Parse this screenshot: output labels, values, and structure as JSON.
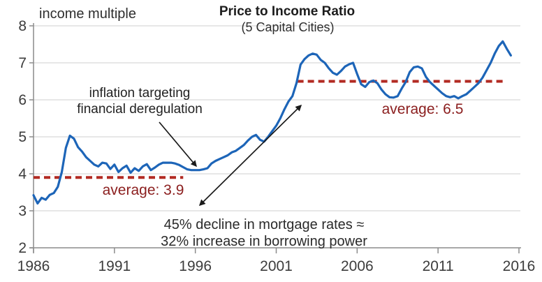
{
  "colors": {
    "series_blue": "#1d65b8",
    "average_red": "#b22a22",
    "average_text_red": "#8b1e1e",
    "grid_gray": "#cfcfcf",
    "axis_gray": "#8c8c8c",
    "tick_text": "#3c3c3c",
    "arrow_black": "#1a1a1a"
  },
  "chart_data": {
    "type": "line",
    "title": "Price to Income Ratio",
    "subtitle": "(5 Capital Cities)",
    "y_unit_label": "income multiple",
    "xlabel": "",
    "ylabel": "income multiple",
    "xlim": [
      1986,
      2016
    ],
    "ylim": [
      2,
      8
    ],
    "x_ticks": [
      1986,
      1991,
      1996,
      2001,
      2006,
      2011,
      2016
    ],
    "y_ticks": [
      2,
      3,
      4,
      5,
      6,
      7,
      8
    ],
    "grid": true,
    "legend": false,
    "series": [
      {
        "name": "price-to-income-ratio",
        "color_key": "series_blue",
        "points": [
          [
            1986,
            3.42
          ],
          [
            1986.25,
            3.2
          ],
          [
            1986.5,
            3.35
          ],
          [
            1986.75,
            3.3
          ],
          [
            1987,
            3.43
          ],
          [
            1987.25,
            3.48
          ],
          [
            1987.5,
            3.65
          ],
          [
            1987.75,
            4.05
          ],
          [
            1988,
            4.7
          ],
          [
            1988.25,
            5.03
          ],
          [
            1988.5,
            4.95
          ],
          [
            1988.75,
            4.72
          ],
          [
            1989,
            4.6
          ],
          [
            1989.25,
            4.45
          ],
          [
            1989.5,
            4.35
          ],
          [
            1989.75,
            4.25
          ],
          [
            1990,
            4.2
          ],
          [
            1990.25,
            4.3
          ],
          [
            1990.5,
            4.28
          ],
          [
            1990.75,
            4.13
          ],
          [
            1991,
            4.25
          ],
          [
            1991.25,
            4.05
          ],
          [
            1991.5,
            4.15
          ],
          [
            1991.75,
            4.22
          ],
          [
            1992,
            4.03
          ],
          [
            1992.25,
            4.15
          ],
          [
            1992.5,
            4.08
          ],
          [
            1992.75,
            4.2
          ],
          [
            1993,
            4.26
          ],
          [
            1993.25,
            4.1
          ],
          [
            1993.5,
            4.17
          ],
          [
            1993.75,
            4.25
          ],
          [
            1994,
            4.3
          ],
          [
            1994.25,
            4.3
          ],
          [
            1994.5,
            4.3
          ],
          [
            1994.75,
            4.28
          ],
          [
            1995,
            4.24
          ],
          [
            1995.25,
            4.18
          ],
          [
            1995.5,
            4.12
          ],
          [
            1995.75,
            4.1
          ],
          [
            1996,
            4.1
          ],
          [
            1996.25,
            4.1
          ],
          [
            1996.5,
            4.12
          ],
          [
            1996.75,
            4.15
          ],
          [
            1997,
            4.28
          ],
          [
            1997.25,
            4.35
          ],
          [
            1997.5,
            4.4
          ],
          [
            1997.75,
            4.45
          ],
          [
            1998,
            4.5
          ],
          [
            1998.25,
            4.58
          ],
          [
            1998.5,
            4.62
          ],
          [
            1998.75,
            4.7
          ],
          [
            1999,
            4.78
          ],
          [
            1999.25,
            4.9
          ],
          [
            1999.5,
            5.0
          ],
          [
            1999.75,
            5.05
          ],
          [
            2000,
            4.92
          ],
          [
            2000.25,
            4.87
          ],
          [
            2000.5,
            5.0
          ],
          [
            2000.75,
            5.15
          ],
          [
            2001,
            5.3
          ],
          [
            2001.25,
            5.5
          ],
          [
            2001.5,
            5.74
          ],
          [
            2001.75,
            5.95
          ],
          [
            2002,
            6.1
          ],
          [
            2002.25,
            6.45
          ],
          [
            2002.5,
            6.95
          ],
          [
            2002.75,
            7.1
          ],
          [
            2003,
            7.2
          ],
          [
            2003.25,
            7.25
          ],
          [
            2003.5,
            7.22
          ],
          [
            2003.75,
            7.08
          ],
          [
            2004,
            7.0
          ],
          [
            2004.25,
            6.85
          ],
          [
            2004.5,
            6.73
          ],
          [
            2004.75,
            6.68
          ],
          [
            2005,
            6.78
          ],
          [
            2005.25,
            6.9
          ],
          [
            2005.5,
            6.96
          ],
          [
            2005.75,
            7.0
          ],
          [
            2006,
            6.7
          ],
          [
            2006.25,
            6.42
          ],
          [
            2006.5,
            6.35
          ],
          [
            2006.75,
            6.48
          ],
          [
            2007,
            6.52
          ],
          [
            2007.25,
            6.45
          ],
          [
            2007.5,
            6.28
          ],
          [
            2007.75,
            6.15
          ],
          [
            2008,
            6.07
          ],
          [
            2008.25,
            6.06
          ],
          [
            2008.5,
            6.1
          ],
          [
            2008.75,
            6.3
          ],
          [
            2009,
            6.48
          ],
          [
            2009.25,
            6.75
          ],
          [
            2009.5,
            6.88
          ],
          [
            2009.75,
            6.9
          ],
          [
            2010,
            6.85
          ],
          [
            2010.25,
            6.62
          ],
          [
            2010.5,
            6.48
          ],
          [
            2010.75,
            6.38
          ],
          [
            2011,
            6.28
          ],
          [
            2011.25,
            6.18
          ],
          [
            2011.5,
            6.1
          ],
          [
            2011.75,
            6.07
          ],
          [
            2012,
            6.1
          ],
          [
            2012.25,
            6.04
          ],
          [
            2012.5,
            6.1
          ],
          [
            2012.75,
            6.15
          ],
          [
            2013,
            6.25
          ],
          [
            2013.25,
            6.35
          ],
          [
            2013.5,
            6.45
          ],
          [
            2013.75,
            6.6
          ],
          [
            2014,
            6.8
          ],
          [
            2014.25,
            7.0
          ],
          [
            2014.5,
            7.25
          ],
          [
            2014.75,
            7.45
          ],
          [
            2015,
            7.58
          ],
          [
            2015.25,
            7.38
          ],
          [
            2015.5,
            7.2
          ]
        ]
      }
    ],
    "reference_lines": [
      {
        "label": "average: 3.9",
        "value": 3.9,
        "x_start": 1986.0,
        "x_end": 1995.25
      },
      {
        "label": "average: 6.5",
        "value": 6.5,
        "x_start": 2002.3,
        "x_end": 2015.2
      }
    ],
    "annotations": [
      {
        "id": "deregulation",
        "lines": [
          "inflation targeting",
          "financial deregulation"
        ]
      },
      {
        "id": "borrowing-power",
        "lines": [
          "45% decline in mortgage rates ≈",
          "32% increase in borrowing power"
        ]
      }
    ]
  }
}
